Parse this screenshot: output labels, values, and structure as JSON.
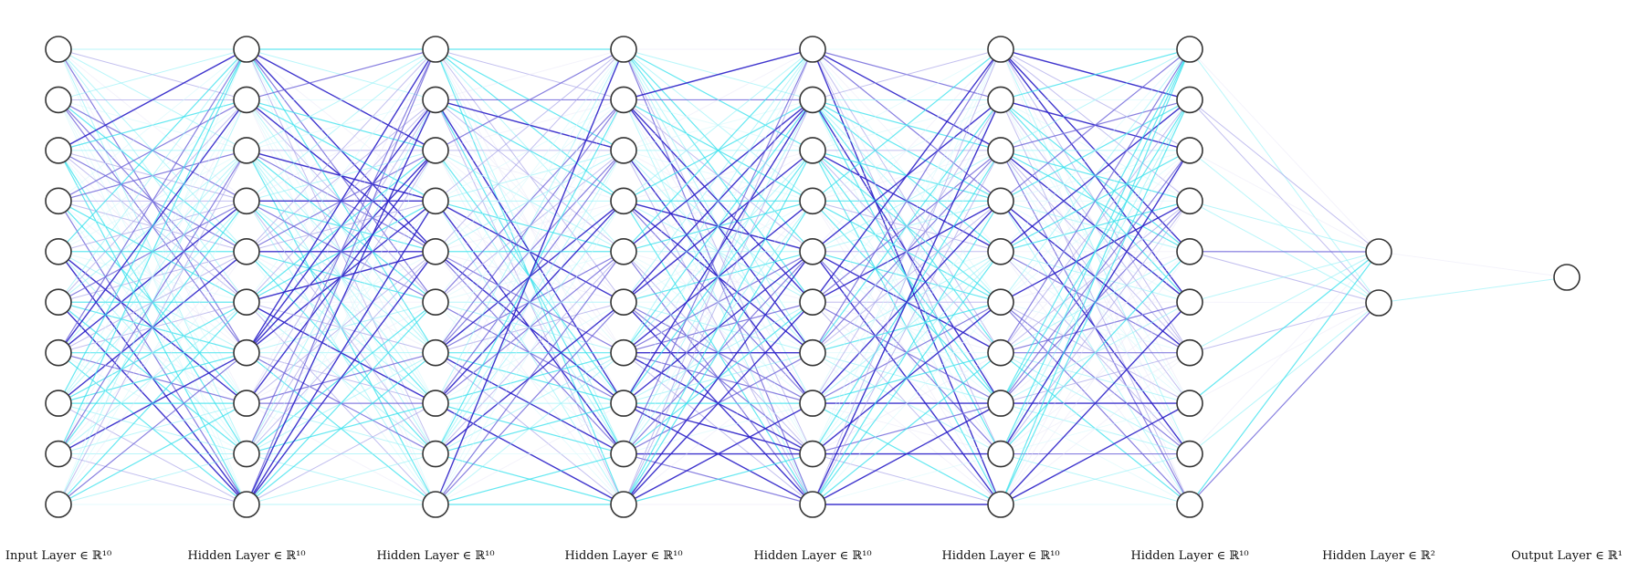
{
  "diagram": {
    "type": "neural-network",
    "layers": [
      {
        "label": "Input Layer ∈ ℝ¹⁰",
        "units": 10
      },
      {
        "label": "Hidden Layer ∈ ℝ¹⁰",
        "units": 10
      },
      {
        "label": "Hidden Layer ∈ ℝ¹⁰",
        "units": 10
      },
      {
        "label": "Hidden Layer ∈ ℝ¹⁰",
        "units": 10
      },
      {
        "label": "Hidden Layer ∈ ℝ¹⁰",
        "units": 10
      },
      {
        "label": "Hidden Layer ∈ ℝ¹⁰",
        "units": 10
      },
      {
        "label": "Hidden Layer ∈ ℝ¹⁰",
        "units": 10
      },
      {
        "label": "Hidden Layer ∈ ℝ²",
        "units": 2
      },
      {
        "label": "Output Layer ∈ ℝ¹",
        "units": 1
      }
    ],
    "connection_palette": [
      "#2a1fc8",
      "#6a60d8",
      "#a8a4e8",
      "#32e0ec",
      "#8af0f6",
      "#d4f8fb",
      "#e8e6f8"
    ],
    "node_fill": "#ffffff",
    "node_stroke": "#333333"
  }
}
